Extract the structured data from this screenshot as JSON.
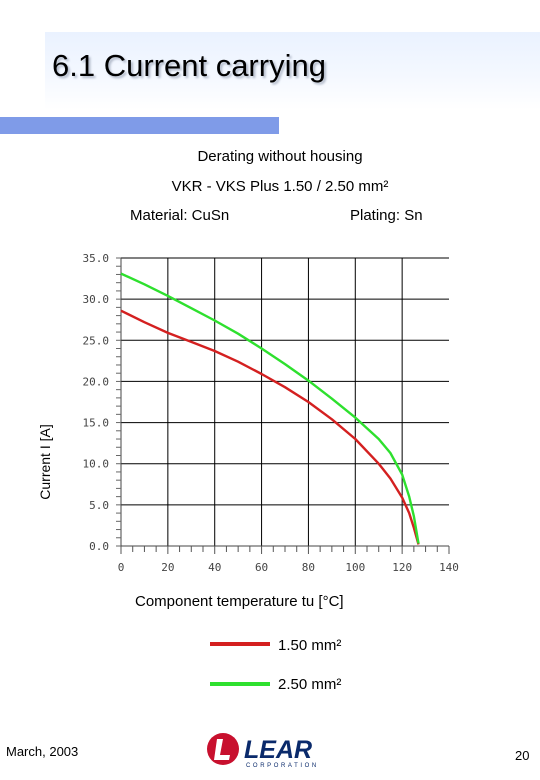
{
  "slide": {
    "title": "6.1 Current carrying",
    "date": "March, 2003",
    "page": "20"
  },
  "logo": {
    "text": "LEAR",
    "subtext": "CORPORATION"
  },
  "chart_data": {
    "type": "line",
    "title": "Derating without housing",
    "subtitle": "VKR - VKS  Plus 1.50 / 2.50 mm²",
    "material": "Material: CuSn",
    "plating": "Plating: Sn",
    "xlabel": "Component temperature tu [°C]",
    "ylabel": "Current I [A]",
    "xlim": [
      0,
      140
    ],
    "ylim": [
      0,
      35
    ],
    "x_ticks": [
      0,
      20,
      40,
      60,
      80,
      100,
      120,
      140
    ],
    "x_tick_labels": [
      "0",
      "20",
      "40",
      "60",
      "80",
      "100",
      "120",
      "140"
    ],
    "y_ticks": [
      0,
      5,
      10,
      15,
      20,
      25,
      30,
      35
    ],
    "y_tick_labels": [
      "0.0",
      "5.0",
      "10.0",
      "15.0",
      "20.0",
      "25.0",
      "30.0",
      "35.0"
    ],
    "grid": true,
    "legend_position": "bottom",
    "series": [
      {
        "name": "1.50 mm²",
        "color": "#d42020",
        "x": [
          0,
          10,
          20,
          30,
          40,
          50,
          60,
          70,
          80,
          90,
          100,
          110,
          115,
          120,
          123,
          125,
          127
        ],
        "y": [
          28.6,
          27.2,
          25.9,
          24.8,
          23.7,
          22.4,
          20.9,
          19.3,
          17.5,
          15.4,
          13.0,
          10.0,
          8.2,
          5.9,
          4.0,
          2.2,
          0.2
        ]
      },
      {
        "name": "2.50 mm²",
        "color": "#2ee02e",
        "x": [
          0,
          10,
          20,
          30,
          40,
          50,
          60,
          70,
          80,
          90,
          100,
          110,
          115,
          120,
          123,
          125,
          127
        ],
        "y": [
          33.1,
          31.8,
          30.4,
          28.9,
          27.4,
          25.8,
          24.0,
          22.1,
          20.1,
          17.9,
          15.6,
          13.0,
          11.3,
          8.7,
          6.0,
          3.6,
          0.3
        ]
      }
    ]
  }
}
